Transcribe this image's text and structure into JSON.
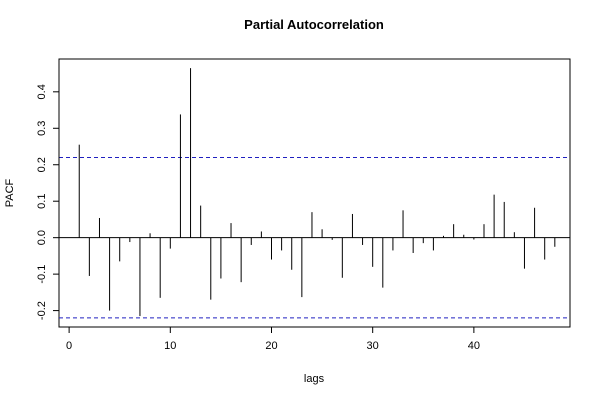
{
  "chart_data": {
    "type": "bar",
    "title": "Partial Autocorrelation",
    "xlabel": "lags",
    "ylabel": "PACF",
    "xlim": [
      -1,
      49.5
    ],
    "ylim": [
      -0.245,
      0.49
    ],
    "xticks": [
      0,
      10,
      20,
      30,
      40
    ],
    "xtick_labels": [
      "0",
      "10",
      "20",
      "30",
      "40"
    ],
    "yticks": [
      -0.2,
      -0.1,
      0.0,
      0.1,
      0.2,
      0.3,
      0.4
    ],
    "ytick_labels": [
      "-0.2",
      "-0.1",
      "0.0",
      "0.1",
      "0.2",
      "0.3",
      "0.4"
    ],
    "confidence_bounds": [
      0.22,
      -0.22
    ],
    "grid": false,
    "lags": [
      1,
      2,
      3,
      4,
      5,
      6,
      7,
      8,
      9,
      10,
      11,
      12,
      13,
      14,
      15,
      16,
      17,
      18,
      19,
      20,
      21,
      22,
      23,
      24,
      25,
      26,
      27,
      28,
      29,
      30,
      31,
      32,
      33,
      34,
      35,
      36,
      37,
      38,
      39,
      40,
      41,
      42,
      43,
      44,
      45,
      46,
      47,
      48
    ],
    "values": [
      0.255,
      -0.105,
      0.054,
      -0.2,
      -0.065,
      -0.012,
      -0.215,
      0.012,
      -0.165,
      -0.03,
      0.338,
      0.465,
      0.088,
      -0.17,
      -0.112,
      0.04,
      -0.122,
      -0.02,
      0.017,
      -0.06,
      -0.035,
      -0.088,
      -0.163,
      0.07,
      0.023,
      -0.006,
      -0.11,
      0.065,
      -0.02,
      -0.08,
      -0.137,
      -0.035,
      0.075,
      -0.042,
      -0.015,
      -0.035,
      0.005,
      0.037,
      0.008,
      -0.005,
      0.037,
      0.118,
      0.098,
      0.015,
      -0.085,
      0.082,
      -0.06,
      -0.025
    ]
  }
}
